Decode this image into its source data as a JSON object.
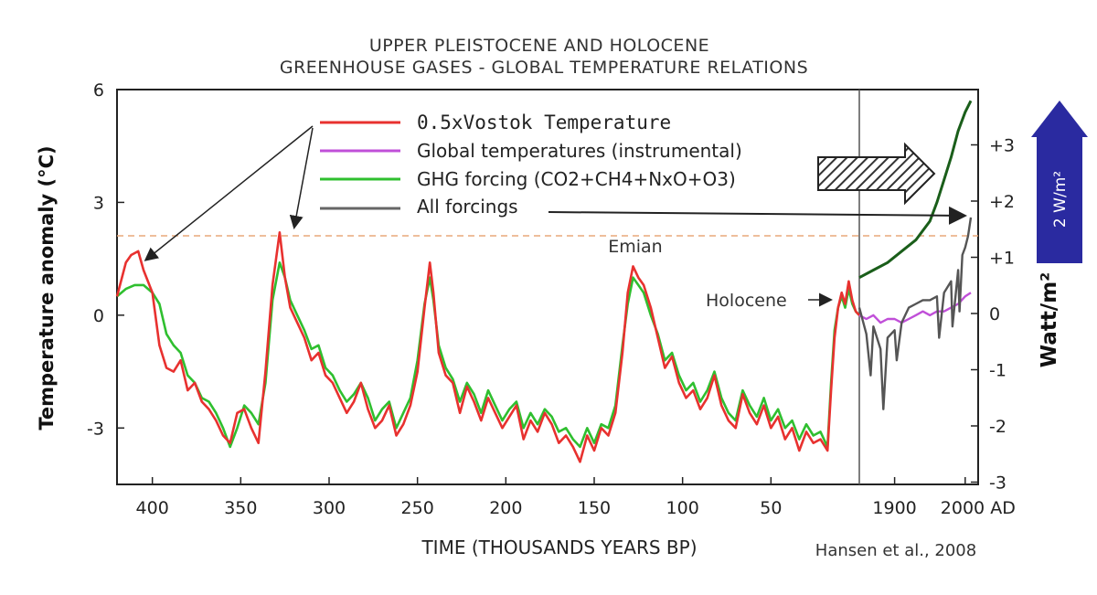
{
  "chart_data": {
    "type": "line",
    "title": "UPPER PLEISTOCENE AND HOLOCENE",
    "subtitle": "GREENHOUSE GASES - GLOBAL TEMPERATURE RELATIONS",
    "xlabel": "TIME (THOUSANDS YEARS BP)",
    "ylabel": "Temperature anomaly (°C)",
    "ylabel_right": "Watt/m²",
    "xlim": [
      420,
      0
    ],
    "ylim": [
      -4.5,
      6
    ],
    "ylim_right": [
      -3,
      4
    ],
    "x_ticks": [
      "400",
      "350",
      "300",
      "250",
      "200",
      "150",
      "100",
      "50"
    ],
    "x_ticks_modern": [
      "1900",
      "2000 AD"
    ],
    "y_ticks_left": [
      "6",
      "3",
      "0",
      "-3"
    ],
    "y_ticks_right": [
      "+3",
      "+2",
      "+1",
      "0",
      "-1",
      "-2",
      "-3"
    ],
    "legend": [
      {
        "label": "0.5xVostok Temperature",
        "color": "#e8312f"
      },
      {
        "label": "Global temperatures (instrumental)",
        "color": "#c04fd8"
      },
      {
        "label": "GHG forcing (CO2+CH4+NxO+O3)",
        "color": "#2fbf2f"
      },
      {
        "label": "All forcings",
        "color": "#666666"
      }
    ],
    "annotations": {
      "emian": "Emian",
      "holocene": "Holocene",
      "watt_box": "2 W/m²",
      "citation": "Hansen et al., 2008"
    },
    "series": [
      {
        "name": "0.5xVostok Temperature",
        "color": "#e8312f",
        "x": [
          420,
          415,
          412,
          408,
          405,
          400,
          396,
          392,
          388,
          384,
          380,
          376,
          372,
          368,
          364,
          360,
          356,
          352,
          348,
          344,
          340,
          336,
          332,
          328,
          325,
          322,
          318,
          314,
          310,
          306,
          302,
          298,
          294,
          290,
          286,
          282,
          278,
          274,
          270,
          266,
          262,
          258,
          254,
          250,
          246,
          243,
          241,
          238,
          234,
          230,
          226,
          222,
          218,
          214,
          210,
          206,
          202,
          198,
          194,
          190,
          186,
          182,
          178,
          174,
          170,
          166,
          162,
          158,
          154,
          150,
          146,
          142,
          138,
          134,
          131,
          128,
          125,
          122,
          118,
          114,
          110,
          106,
          102,
          98,
          94,
          90,
          86,
          82,
          78,
          74,
          70,
          66,
          62,
          58,
          54,
          50,
          46,
          42,
          38,
          34,
          30,
          26,
          22,
          18,
          16,
          14,
          12,
          10,
          8,
          6,
          4,
          2,
          0
        ],
        "y": [
          0.5,
          1.4,
          1.6,
          1.7,
          1.2,
          0.6,
          -0.8,
          -1.4,
          -1.5,
          -1.2,
          -2.0,
          -1.8,
          -2.3,
          -2.5,
          -2.8,
          -3.2,
          -3.4,
          -2.6,
          -2.5,
          -3.0,
          -3.4,
          -1.5,
          0.8,
          2.2,
          1.0,
          0.2,
          -0.2,
          -0.6,
          -1.2,
          -1.0,
          -1.6,
          -1.8,
          -2.2,
          -2.6,
          -2.3,
          -1.8,
          -2.5,
          -3.0,
          -2.8,
          -2.4,
          -3.2,
          -2.9,
          -2.4,
          -1.5,
          0.2,
          1.4,
          0.6,
          -1.0,
          -1.6,
          -1.8,
          -2.6,
          -1.9,
          -2.3,
          -2.8,
          -2.2,
          -2.6,
          -3.0,
          -2.7,
          -2.4,
          -3.3,
          -2.8,
          -3.1,
          -2.6,
          -2.9,
          -3.4,
          -3.2,
          -3.5,
          -3.9,
          -3.2,
          -3.6,
          -3.0,
          -3.2,
          -2.6,
          -1.0,
          0.6,
          1.3,
          1.0,
          0.8,
          0.2,
          -0.6,
          -1.4,
          -1.1,
          -1.8,
          -2.2,
          -2.0,
          -2.5,
          -2.2,
          -1.6,
          -2.4,
          -2.8,
          -3.0,
          -2.1,
          -2.6,
          -2.9,
          -2.4,
          -3.0,
          -2.7,
          -3.3,
          -3.0,
          -3.6,
          -3.1,
          -3.4,
          -3.3,
          -3.6,
          -2.0,
          -0.6,
          0.2,
          0.6,
          0.3,
          0.9,
          0.4,
          0.1,
          0.0
        ]
      },
      {
        "name": "GHG forcing (CO2+CH4+NxO+O3)",
        "color": "#2fbf2f",
        "x": [
          420,
          415,
          410,
          405,
          400,
          396,
          392,
          388,
          384,
          380,
          376,
          372,
          368,
          364,
          360,
          356,
          352,
          348,
          344,
          340,
          336,
          332,
          328,
          325,
          322,
          318,
          314,
          310,
          306,
          302,
          298,
          294,
          290,
          286,
          282,
          278,
          274,
          270,
          266,
          262,
          258,
          254,
          250,
          246,
          243,
          241,
          238,
          234,
          230,
          226,
          222,
          218,
          214,
          210,
          206,
          202,
          198,
          194,
          190,
          186,
          182,
          178,
          174,
          170,
          166,
          162,
          158,
          154,
          150,
          146,
          142,
          138,
          134,
          131,
          128,
          125,
          122,
          118,
          114,
          110,
          106,
          102,
          98,
          94,
          90,
          86,
          82,
          78,
          74,
          70,
          66,
          62,
          58,
          54,
          50,
          46,
          42,
          38,
          34,
          30,
          26,
          22,
          18,
          16,
          14,
          12,
          10,
          8,
          6,
          4,
          2,
          0
        ],
        "y": [
          0.5,
          0.7,
          0.8,
          0.8,
          0.6,
          0.3,
          -0.5,
          -0.8,
          -1.0,
          -1.6,
          -1.8,
          -2.2,
          -2.3,
          -2.6,
          -3.0,
          -3.5,
          -3.0,
          -2.4,
          -2.6,
          -2.9,
          -1.8,
          0.4,
          1.4,
          1.0,
          0.4,
          0.0,
          -0.4,
          -0.9,
          -0.8,
          -1.4,
          -1.6,
          -2.0,
          -2.3,
          -2.1,
          -1.8,
          -2.2,
          -2.8,
          -2.5,
          -2.3,
          -3.0,
          -2.6,
          -2.2,
          -1.2,
          0.3,
          1.0,
          0.4,
          -0.8,
          -1.4,
          -1.7,
          -2.3,
          -1.8,
          -2.1,
          -2.6,
          -2.0,
          -2.4,
          -2.8,
          -2.5,
          -2.3,
          -3.0,
          -2.6,
          -2.9,
          -2.5,
          -2.7,
          -3.1,
          -3.0,
          -3.3,
          -3.5,
          -3.0,
          -3.4,
          -2.9,
          -3.0,
          -2.4,
          -0.8,
          0.3,
          1.0,
          0.8,
          0.6,
          0.0,
          -0.5,
          -1.2,
          -1.0,
          -1.6,
          -2.0,
          -1.8,
          -2.3,
          -2.0,
          -1.5,
          -2.2,
          -2.6,
          -2.8,
          -2.0,
          -2.4,
          -2.7,
          -2.2,
          -2.8,
          -2.5,
          -3.0,
          -2.8,
          -3.3,
          -2.9,
          -3.2,
          -3.1,
          -3.5,
          -1.8,
          -0.4,
          0.2,
          0.5,
          0.2,
          0.7,
          0.3,
          0.1,
          0.0
        ]
      }
    ],
    "modern_series": [
      {
        "name": "GHG forcing (CO2+CH4+NxO+O3)",
        "color": "#1a5e1a",
        "x": [
          1850,
          1870,
          1890,
          1910,
          1930,
          1950,
          1960,
          1970,
          1980,
          1990,
          2000,
          2008
        ],
        "y": [
          1.0,
          1.2,
          1.4,
          1.7,
          2.0,
          2.5,
          3.0,
          3.6,
          4.2,
          4.9,
          5.4,
          5.7
        ]
      },
      {
        "name": "Global temperatures (instrumental)",
        "color": "#c04fd8",
        "x": [
          1850,
          1860,
          1870,
          1880,
          1890,
          1900,
          1910,
          1920,
          1930,
          1940,
          1950,
          1960,
          1970,
          1980,
          1990,
          2000,
          2008
        ],
        "y": [
          0.0,
          -0.1,
          0.0,
          -0.2,
          -0.1,
          -0.1,
          -0.2,
          -0.1,
          0.0,
          0.1,
          0.0,
          0.1,
          0.1,
          0.2,
          0.3,
          0.5,
          0.6
        ]
      },
      {
        "name": "All forcings",
        "color": "#555555",
        "x": [
          1850,
          1860,
          1866,
          1870,
          1880,
          1884,
          1890,
          1900,
          1903,
          1910,
          1920,
          1930,
          1940,
          1950,
          1960,
          1963,
          1970,
          1980,
          1982,
          1990,
          1992,
          1996,
          2000,
          2004,
          2008
        ],
        "y": [
          0.2,
          -0.5,
          -1.6,
          -0.3,
          -0.9,
          -2.5,
          -0.6,
          -0.4,
          -1.2,
          -0.2,
          0.2,
          0.3,
          0.4,
          0.4,
          0.5,
          -0.6,
          0.6,
          0.9,
          -0.3,
          1.2,
          0.1,
          1.6,
          1.8,
          2.1,
          2.6
        ]
      }
    ],
    "reference_lines": [
      {
        "y": 2.2,
        "style": "dashed",
        "color": "#e8a87a"
      }
    ]
  }
}
